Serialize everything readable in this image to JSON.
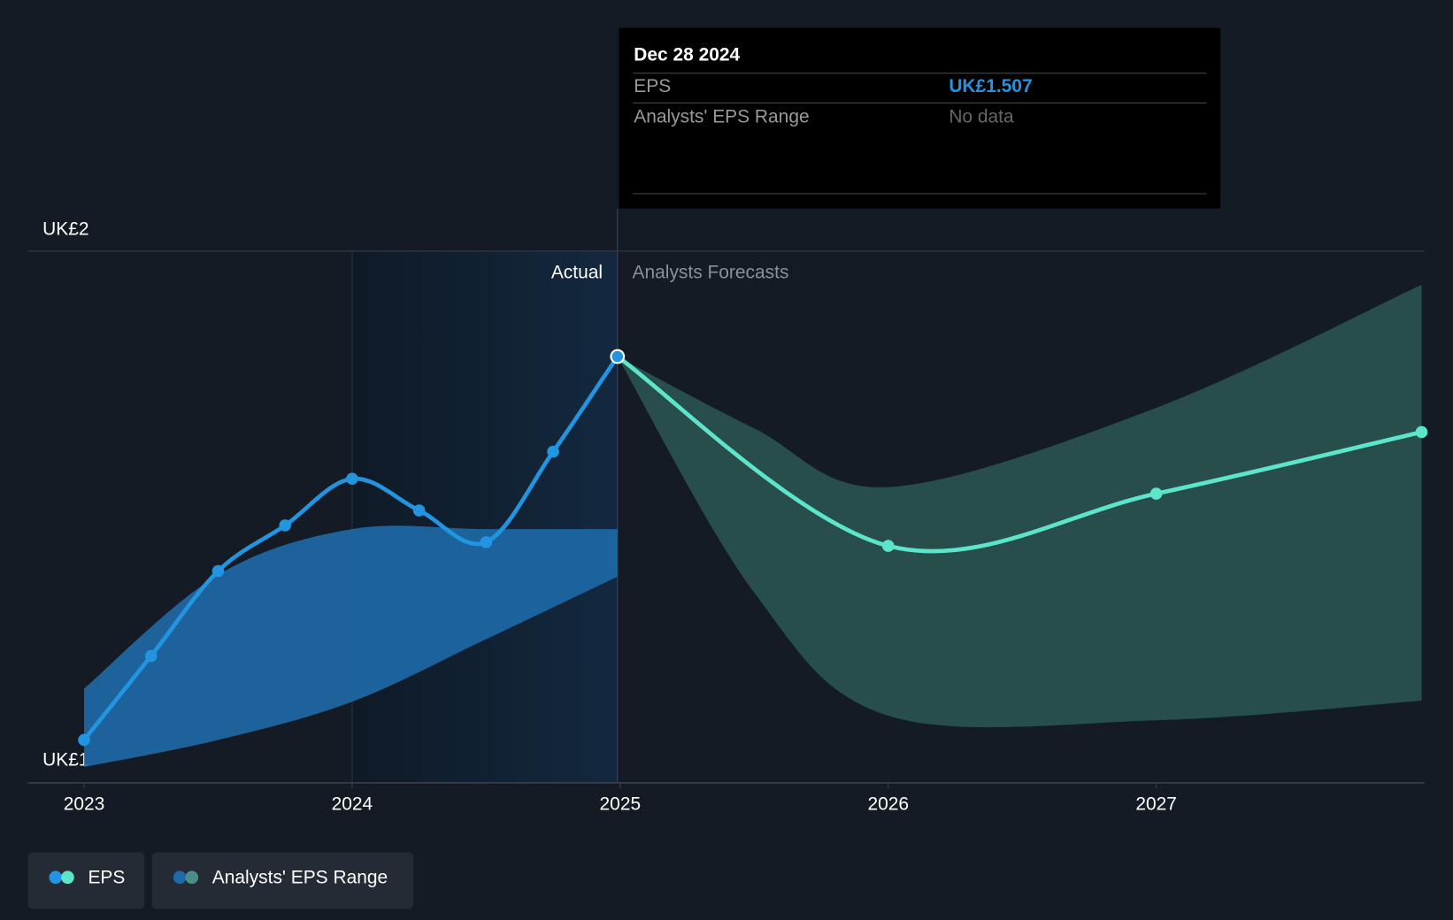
{
  "chart_data": {
    "type": "line",
    "xlim": [
      2022.79,
      2028.0
    ],
    "xticks": [
      2023,
      2024,
      2025,
      2026,
      2027
    ],
    "ylim": [
      1.05,
      1.62
    ],
    "yticks": [
      {
        "value": 1.05,
        "label": "UK£1"
      },
      {
        "value": 1.62,
        "label": "UK£2"
      }
    ],
    "grid": true,
    "actual_label": "Actual",
    "forecast_label": "Analysts Forecasts",
    "eps": {
      "name": "EPS",
      "colors": [
        "#2394df",
        "#5de5cc"
      ],
      "actual": {
        "x": [
          2023.0,
          2023.25,
          2023.5,
          2023.75,
          2024.0,
          2024.25,
          2024.5,
          2024.75,
          2024.99
        ],
        "values": [
          1.096,
          1.186,
          1.277,
          1.326,
          1.376,
          1.342,
          1.308,
          1.405,
          1.507
        ]
      },
      "forecast": {
        "x": [
          2024.99,
          2026.0,
          2027.0,
          2027.99
        ],
        "values": [
          1.507,
          1.304,
          1.36,
          1.426
        ]
      }
    },
    "range": {
      "name": "Analysts' EPS Range",
      "colors": [
        "#1e6aa8",
        "#2c5753"
      ],
      "actual": {
        "x": [
          2023.0,
          2023.5,
          2024.0,
          2024.5,
          2024.99
        ],
        "upper": [
          1.151,
          1.273,
          1.322,
          1.322,
          1.322
        ],
        "lower": [
          1.067,
          1.096,
          1.137,
          1.204,
          1.271
        ]
      },
      "forecast": {
        "x": [
          2024.99,
          2025.5,
          2026.0,
          2027.0,
          2027.99
        ],
        "upper": [
          1.507,
          1.43,
          1.367,
          1.452,
          1.584
        ],
        "lower": [
          1.507,
          1.254,
          1.122,
          1.117,
          1.138
        ]
      }
    },
    "tooltip": {
      "date": "Dec 28 2024",
      "rows": [
        {
          "label": "EPS",
          "value": "UK£1.507"
        },
        {
          "label": "Analysts' EPS Range",
          "value": "No data"
        }
      ]
    }
  }
}
